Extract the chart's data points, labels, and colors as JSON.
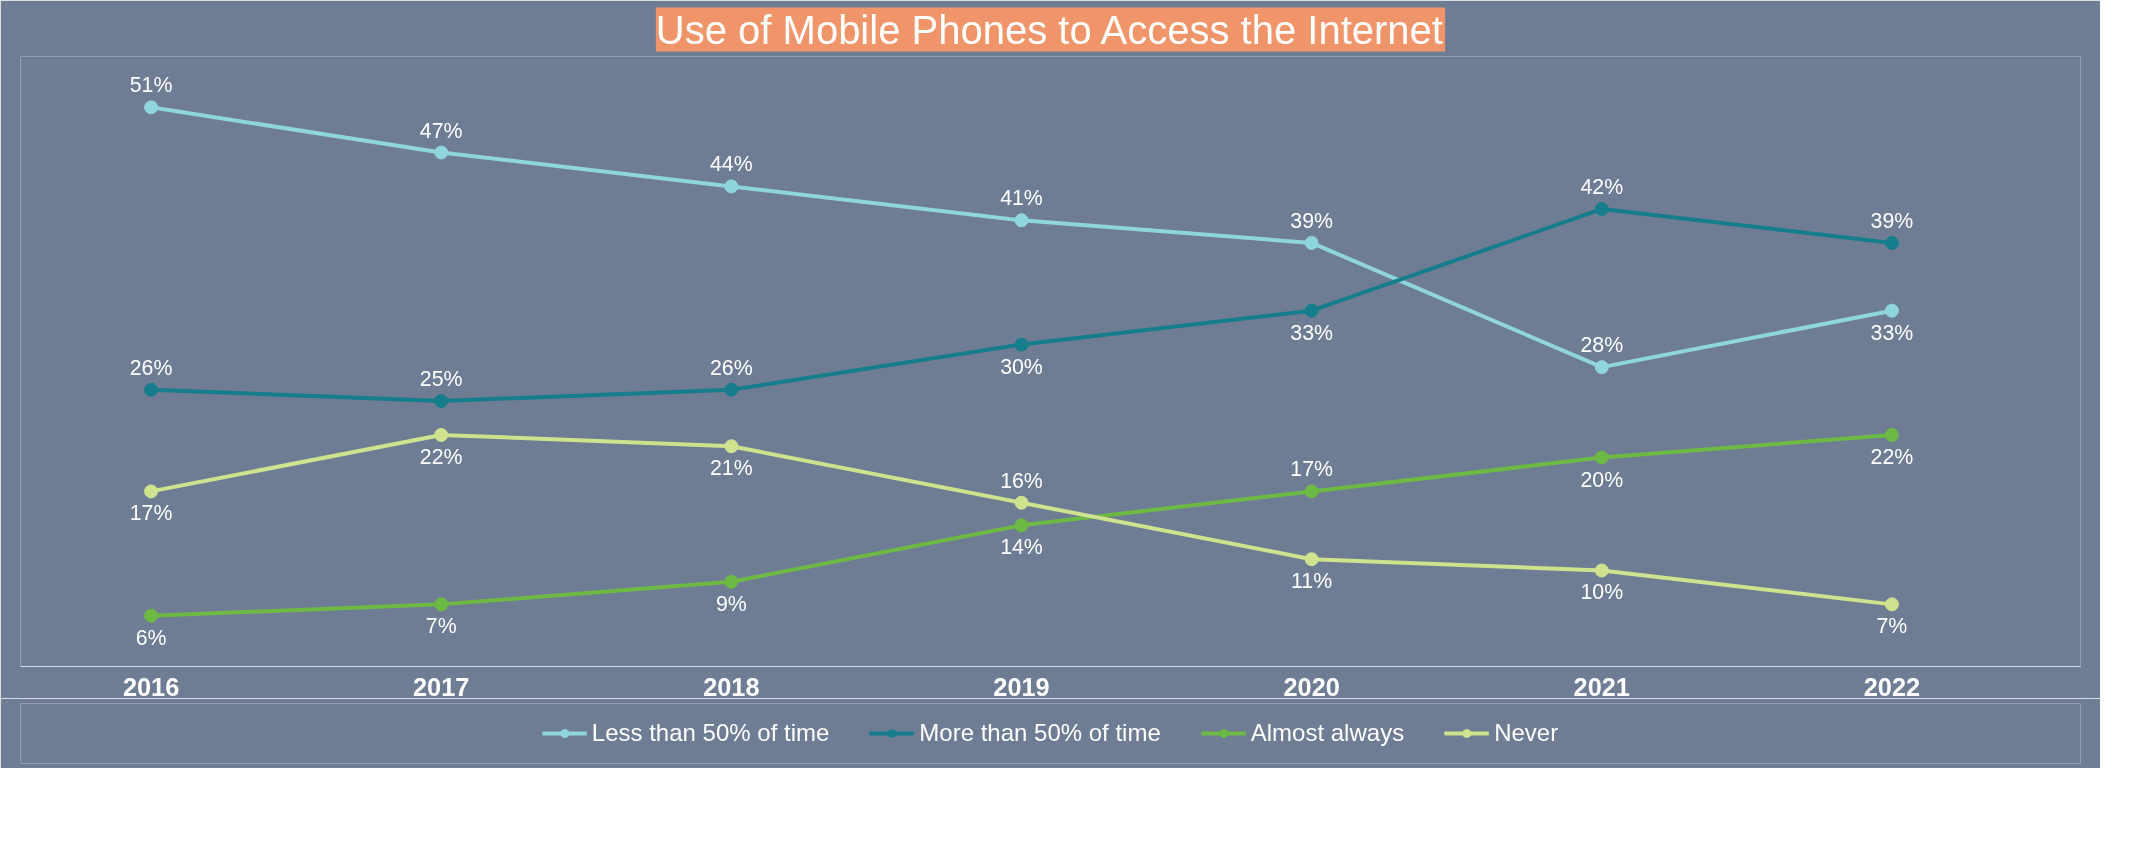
{
  "chart_data": {
    "type": "line",
    "title": "Use of Mobile Phones to Access the Internet",
    "categories": [
      "2016",
      "2017",
      "2018",
      "2019",
      "2020",
      "2021",
      "2022"
    ],
    "series": [
      {
        "name": "Less than 50% of time",
        "color": "#8fd5dc",
        "values": [
          51,
          47,
          44,
          41,
          39,
          28,
          33
        ],
        "value_labels": [
          "51%",
          "47%",
          "44%",
          "41%",
          "39%",
          "28%",
          "33%"
        ]
      },
      {
        "name": "More than 50% of time",
        "color": "#167d8c",
        "values": [
          26,
          25,
          26,
          30,
          33,
          42,
          39
        ],
        "value_labels": [
          "26%",
          "25%",
          "26%",
          "30%",
          "33%",
          "42%",
          "39%"
        ]
      },
      {
        "name": "Almost always",
        "color": "#6cb944",
        "values": [
          6,
          7,
          9,
          14,
          17,
          20,
          22
        ],
        "value_labels": [
          "6%",
          "7%",
          "9%",
          "14%",
          "17%",
          "20%",
          "22%"
        ]
      },
      {
        "name": "Never",
        "color": "#cfe38f",
        "values": [
          17,
          22,
          21,
          16,
          11,
          10,
          7
        ],
        "value_labels": [
          "17%",
          "22%",
          "21%",
          "16%",
          "11%",
          "10%",
          "7%"
        ]
      }
    ],
    "tick_labels": "x",
    "grid": false,
    "legend": "bottom",
    "marker": "circle",
    "line_style": "solid"
  }
}
